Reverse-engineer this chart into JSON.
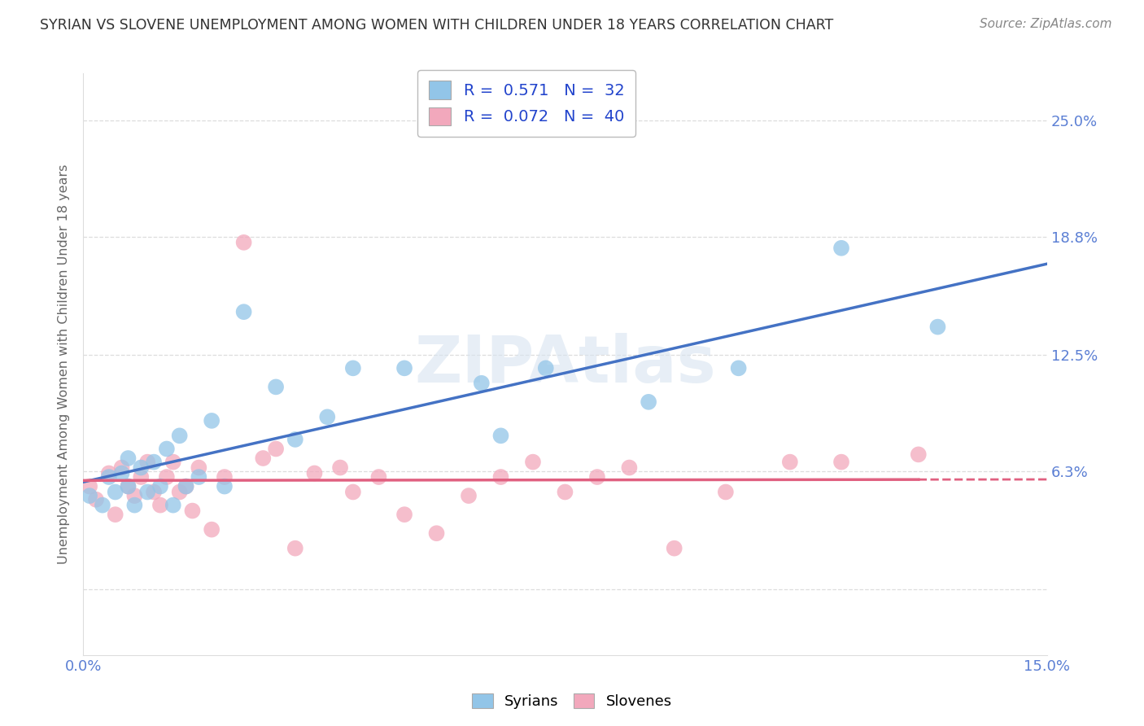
{
  "title": "SYRIAN VS SLOVENE UNEMPLOYMENT AMONG WOMEN WITH CHILDREN UNDER 18 YEARS CORRELATION CHART",
  "source": "Source: ZipAtlas.com",
  "ylabel": "Unemployment Among Women with Children Under 18 years",
  "ytick_vals": [
    0.0,
    0.063,
    0.125,
    0.188,
    0.25
  ],
  "ytick_labels": [
    "",
    "6.3%",
    "12.5%",
    "18.8%",
    "25.0%"
  ],
  "xlim": [
    0.0,
    0.15
  ],
  "ylim": [
    -0.035,
    0.275
  ],
  "legend_line1": "R =  0.571   N =  32",
  "legend_line2": "R =  0.072   N =  40",
  "syrian_color": "#92C5E8",
  "slovene_color": "#F2A8BC",
  "syrian_line_color": "#4472C4",
  "slovene_line_color": "#E06080",
  "background_color": "#FFFFFF",
  "grid_color": "#DDDDDD",
  "tick_color": "#5B7FD4",
  "syrian_scatter_x": [
    0.001,
    0.003,
    0.004,
    0.005,
    0.006,
    0.007,
    0.007,
    0.008,
    0.009,
    0.01,
    0.011,
    0.012,
    0.013,
    0.014,
    0.015,
    0.016,
    0.018,
    0.02,
    0.022,
    0.025,
    0.03,
    0.033,
    0.038,
    0.042,
    0.05,
    0.062,
    0.065,
    0.072,
    0.088,
    0.102,
    0.118,
    0.133
  ],
  "syrian_scatter_y": [
    0.05,
    0.045,
    0.06,
    0.052,
    0.062,
    0.055,
    0.07,
    0.045,
    0.065,
    0.052,
    0.068,
    0.055,
    0.075,
    0.045,
    0.082,
    0.055,
    0.06,
    0.09,
    0.055,
    0.148,
    0.108,
    0.08,
    0.092,
    0.118,
    0.118,
    0.11,
    0.082,
    0.118,
    0.1,
    0.118,
    0.182,
    0.14
  ],
  "slovene_scatter_x": [
    0.001,
    0.002,
    0.004,
    0.005,
    0.006,
    0.007,
    0.008,
    0.009,
    0.01,
    0.011,
    0.012,
    0.013,
    0.014,
    0.015,
    0.016,
    0.017,
    0.018,
    0.02,
    0.022,
    0.025,
    0.028,
    0.03,
    0.033,
    0.036,
    0.04,
    0.042,
    0.046,
    0.05,
    0.055,
    0.06,
    0.065,
    0.07,
    0.075,
    0.08,
    0.085,
    0.092,
    0.1,
    0.11,
    0.118,
    0.13
  ],
  "slovene_scatter_y": [
    0.055,
    0.048,
    0.062,
    0.04,
    0.065,
    0.055,
    0.05,
    0.06,
    0.068,
    0.052,
    0.045,
    0.06,
    0.068,
    0.052,
    0.055,
    0.042,
    0.065,
    0.032,
    0.06,
    0.185,
    0.07,
    0.075,
    0.022,
    0.062,
    0.065,
    0.052,
    0.06,
    0.04,
    0.03,
    0.05,
    0.06,
    0.068,
    0.052,
    0.06,
    0.065,
    0.022,
    0.052,
    0.068,
    0.068,
    0.072
  ]
}
